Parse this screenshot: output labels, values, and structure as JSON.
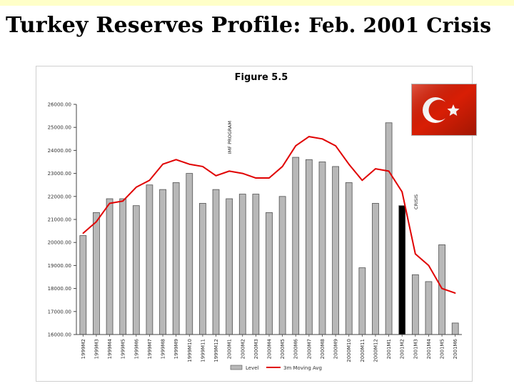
{
  "slide": {
    "title_main": "Turkey Reserves Profile:",
    "title_sub": "Feb. 2001 Crisis"
  },
  "flag": {
    "icon": "turkey-flag-icon",
    "colors": {
      "red": "#d81e05",
      "white": "#ffffff"
    }
  },
  "chart_data": {
    "type": "bar",
    "title": "Figure 5.5",
    "xlabel": "",
    "ylabel": "",
    "ylim": [
      16000,
      26000
    ],
    "yticks": [
      {
        "value": 16000,
        "label": "16000.00"
      },
      {
        "value": 17000,
        "label": "17000.00"
      },
      {
        "value": 18000,
        "label": "18000.00"
      },
      {
        "value": 19000,
        "label": "19000.00"
      },
      {
        "value": 20000,
        "label": "20000.00"
      },
      {
        "value": 21000,
        "label": "21000.00"
      },
      {
        "value": 22000,
        "label": "22000.00"
      },
      {
        "value": 23000,
        "label": "23000.00"
      },
      {
        "value": 24000,
        "label": "24000.00"
      },
      {
        "value": 25000,
        "label": "25000.00"
      },
      {
        "value": 26000,
        "label": "26000.00"
      }
    ],
    "categories": [
      "1999M2",
      "1999M3",
      "1999M4",
      "1999M5",
      "1999M6",
      "1999M7",
      "1999M8",
      "1999M9",
      "1999M10",
      "1999M11",
      "1999M12",
      "2000M1",
      "2000M2",
      "2000M3",
      "2000M4",
      "2000M5",
      "2000M6",
      "2000M7",
      "2000M8",
      "2000M9",
      "2000M10",
      "2000M11",
      "2000M12",
      "2001M1",
      "2001M2",
      "2001M3",
      "2001M4",
      "2001M5",
      "2001M6"
    ],
    "series": [
      {
        "name": "Level",
        "type": "bar",
        "color": "#b8b8b8",
        "values": [
          20300,
          21300,
          21900,
          21900,
          21600,
          22500,
          22300,
          22600,
          23000,
          21700,
          22300,
          21900,
          22100,
          22100,
          21300,
          22000,
          23700,
          23600,
          23500,
          23300,
          22600,
          18900,
          21700,
          25200,
          21600,
          18600,
          18300,
          19900,
          16500
        ]
      },
      {
        "name": "3m Moving Avg",
        "type": "line",
        "color": "#e00000",
        "values": [
          20400,
          20900,
          21700,
          21800,
          22400,
          22700,
          23400,
          23600,
          23400,
          23300,
          22900,
          23100,
          23000,
          22800,
          22800,
          23300,
          24200,
          24600,
          24500,
          24200,
          23400,
          22700,
          23200,
          23100,
          22200,
          19500,
          19000,
          18000,
          17800
        ]
      }
    ],
    "highlight_index": 24,
    "highlight_color": "#000000",
    "annotations": [
      {
        "text": "IMF PROGRAM",
        "at_category": "2000M1"
      },
      {
        "text": "CRISIS",
        "at_category": "2001M3"
      }
    ],
    "legend": {
      "position": "bottom",
      "items": [
        "Level",
        "3m Moving Avg"
      ]
    },
    "grid": false
  }
}
